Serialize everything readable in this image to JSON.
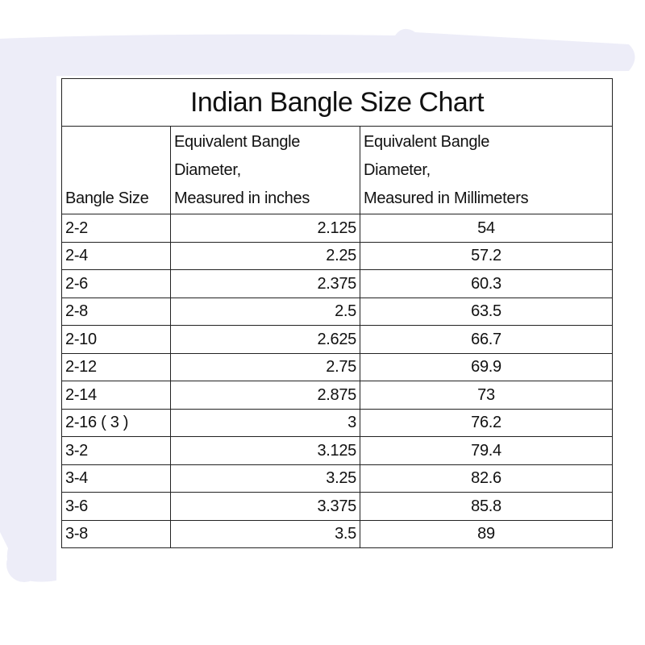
{
  "title": "Indian Bangle Size Chart",
  "columns": [
    "Bangle Size",
    "Equivalent Bangle Diameter, Measured in inches",
    "Equivalent Bangle Diameter, Measured in Millimeters"
  ],
  "rows": [
    [
      "2-2",
      "2.125",
      "54"
    ],
    [
      "2-4",
      "2.25",
      "57.2"
    ],
    [
      "2-6",
      "2.375",
      "60.3"
    ],
    [
      "2-8",
      "2.5",
      "63.5"
    ],
    [
      "2-10",
      "2.625",
      "66.7"
    ],
    [
      "2-12",
      "2.75",
      "69.9"
    ],
    [
      "2-14",
      "2.875",
      "73"
    ],
    [
      "2-16 ( 3 )",
      "3",
      "76.2"
    ],
    [
      "3-2",
      "3.125",
      "79.4"
    ],
    [
      "3-4",
      "3.25",
      "82.6"
    ],
    [
      "3-6",
      "3.375",
      "85.8"
    ],
    [
      "3-8",
      "3.5",
      "89"
    ]
  ],
  "colors": {
    "background_brush": "#ededf8",
    "border": "#222222"
  }
}
